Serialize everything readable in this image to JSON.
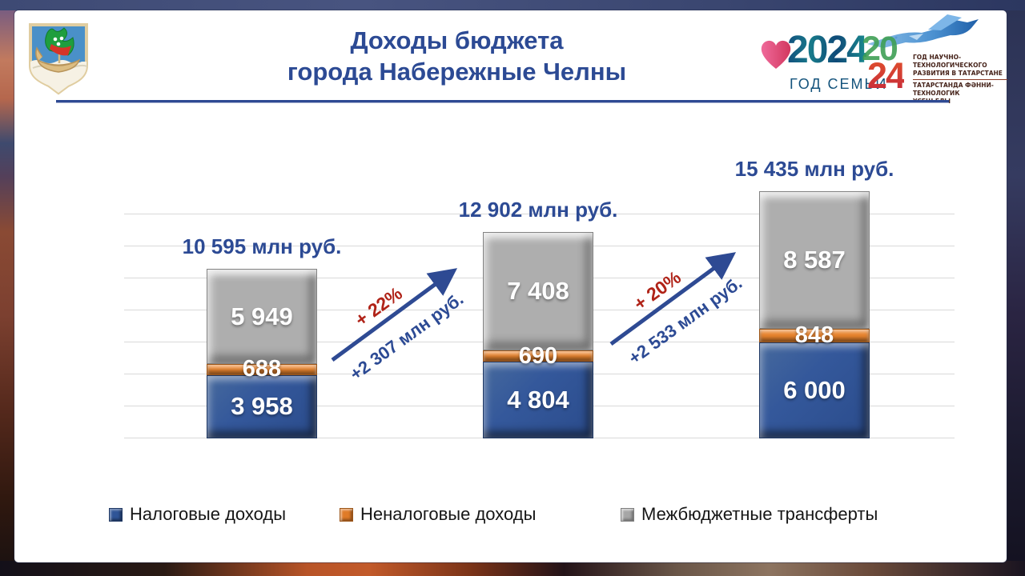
{
  "header": {
    "title_line1": "Доходы бюджета",
    "title_line2": "города Набережные Челны"
  },
  "logos": {
    "family_year": {
      "year": "2024",
      "caption": "ГОД СЕМЬИ"
    },
    "science_year": {
      "year_top": "20",
      "year_bottom": "24",
      "line1": "ГОД НАУЧНО-ТЕХНОЛОГИЧЕСКОГО",
      "line2": "РАЗВИТИЯ В ТАТАРСТАНЕ",
      "line3": "ТАТАРСТАНДА ФӘННИ-ТЕХНОЛОГИК",
      "line4": "ҮСЕШ ЕЛЫ"
    }
  },
  "chart_data": {
    "type": "bar",
    "stacked": true,
    "title": "Доходы бюджета города Набережные Челны",
    "unit": "млн руб.",
    "categories": [
      "",
      "",
      ""
    ],
    "series": [
      {
        "key": "tax",
        "name": "Налоговые доходы",
        "color": "#2f5597",
        "values": [
          3958,
          4804,
          6000
        ],
        "labels": [
          "3 958",
          "4 804",
          "6 000"
        ]
      },
      {
        "key": "nontax",
        "name": "Неналоговые доходы",
        "color": "#e07b28",
        "values": [
          688,
          690,
          848
        ],
        "labels": [
          "688",
          "690",
          "848"
        ]
      },
      {
        "key": "transfers",
        "name": "Межбюджетные трансферты",
        "color": "#a6a6a6",
        "values": [
          5949,
          7408,
          8587
        ],
        "labels": [
          "5 949",
          "7 408",
          "8 587"
        ]
      }
    ],
    "totals": [
      10595,
      12902,
      15435
    ],
    "totals_display": [
      "10 595 млн руб.",
      "12 902 млн руб.",
      "15 435 млн руб."
    ],
    "growth": [
      {
        "percent": "+ 22%",
        "amount": "+2 307 млн руб."
      },
      {
        "percent": "+ 20%",
        "amount": "+2 533 млн руб."
      }
    ],
    "ylim": [
      0,
      14000
    ],
    "gridline_step": 2000,
    "grid": true,
    "legend_position": "bottom"
  },
  "colors": {
    "accent_blue": "#2c4a94",
    "accent_red": "#b02318",
    "bar_blue": "#2f5597",
    "bar_orange": "#e07b28",
    "bar_gray": "#a6a6a6",
    "gridline": "#d9d9d9"
  }
}
